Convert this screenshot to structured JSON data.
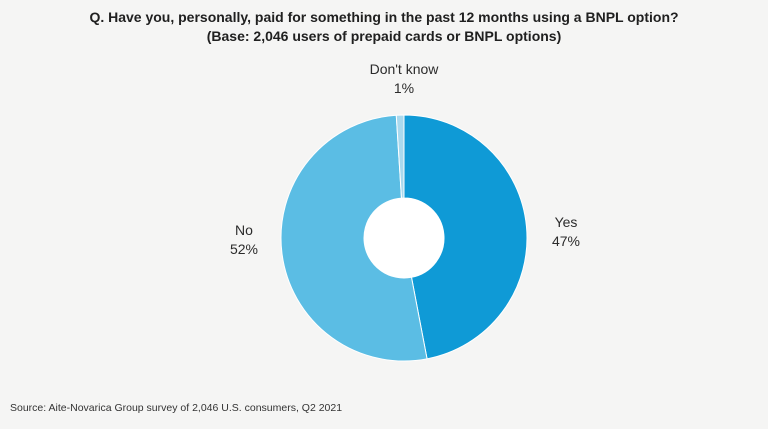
{
  "chart_data": {
    "type": "pie",
    "title": "Q. Have you, personally, paid for something in the past 12 months using a BNPL option?",
    "subtitle": "(Base: 2,046 users of prepaid cards or BNPL options)",
    "slices": [
      {
        "label": "Yes",
        "value": 47,
        "value_label": "47%",
        "color": "#0f9ad6"
      },
      {
        "label": "No",
        "value": 52,
        "value_label": "52%",
        "color": "#5bbde4"
      },
      {
        "label": "Don't know",
        "value": 1,
        "value_label": "1%",
        "color": "#a9d9ee"
      }
    ],
    "donut": true,
    "legend": "none"
  },
  "source": "Source: Aite-Novarica Group survey of 2,046 U.S. consumers, Q2 2021"
}
